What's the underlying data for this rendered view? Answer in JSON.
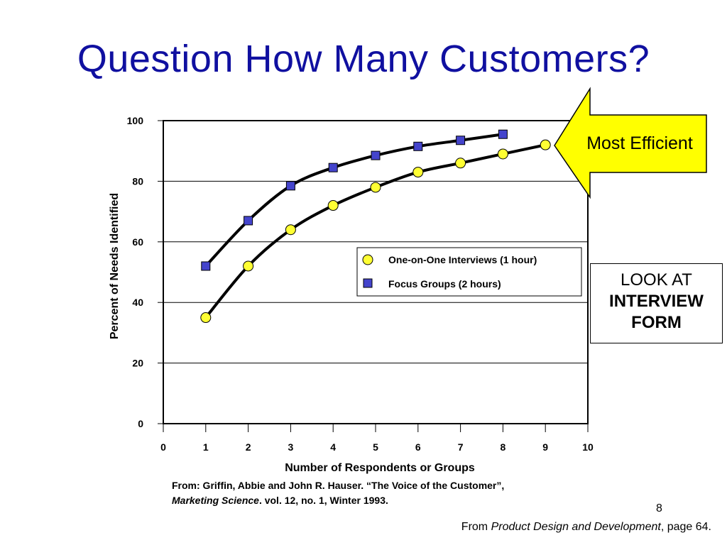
{
  "slide": {
    "title": "Question How Many Customers?",
    "slide_number": "8",
    "footer": {
      "prefix": "From ",
      "book": "Product Design and Development",
      "suffix": ", page 64."
    }
  },
  "callout": {
    "text": "Most Efficient",
    "color": "#ffff00"
  },
  "look_box": {
    "line1": "LOOK AT",
    "line2": "INTERVIEW",
    "line3": "FORM"
  },
  "source": {
    "line1": "From: Griffin, Abbie and John R. Hauser. “The Voice of the Customer”,",
    "journal": "Marketing Science",
    "line2_rest": ". vol. 12, no. 1, Winter 1993."
  },
  "colors": {
    "title": "#1010a0",
    "circle_fill": "#ffff33",
    "square_fill": "#4444cc"
  },
  "chart_data": {
    "type": "line",
    "xlabel": "Number of Respondents or Groups",
    "ylabel": "Percent of Needs Identified",
    "xlim": [
      0,
      10
    ],
    "ylim": [
      0,
      100
    ],
    "x_ticks": [
      "0",
      "1",
      "2",
      "3",
      "4",
      "5",
      "6",
      "7",
      "8",
      "9",
      "10"
    ],
    "y_ticks": [
      "0",
      "20",
      "40",
      "60",
      "80",
      "100"
    ],
    "grid": "horizontal",
    "legend_position": "center-right",
    "series": [
      {
        "name": "One-on-One Interviews (1 hour)",
        "marker": "circle",
        "x": [
          1,
          2,
          3,
          4,
          5,
          6,
          7,
          8,
          9
        ],
        "y": [
          35,
          52,
          64,
          72,
          78,
          83,
          86,
          89,
          92
        ]
      },
      {
        "name": "Focus Groups (2 hours)",
        "marker": "square",
        "x": [
          1,
          2,
          3,
          4,
          5,
          6,
          7,
          8
        ],
        "y": [
          52,
          67,
          78.5,
          84.5,
          88.5,
          91.5,
          93.5,
          95.5
        ]
      }
    ]
  }
}
